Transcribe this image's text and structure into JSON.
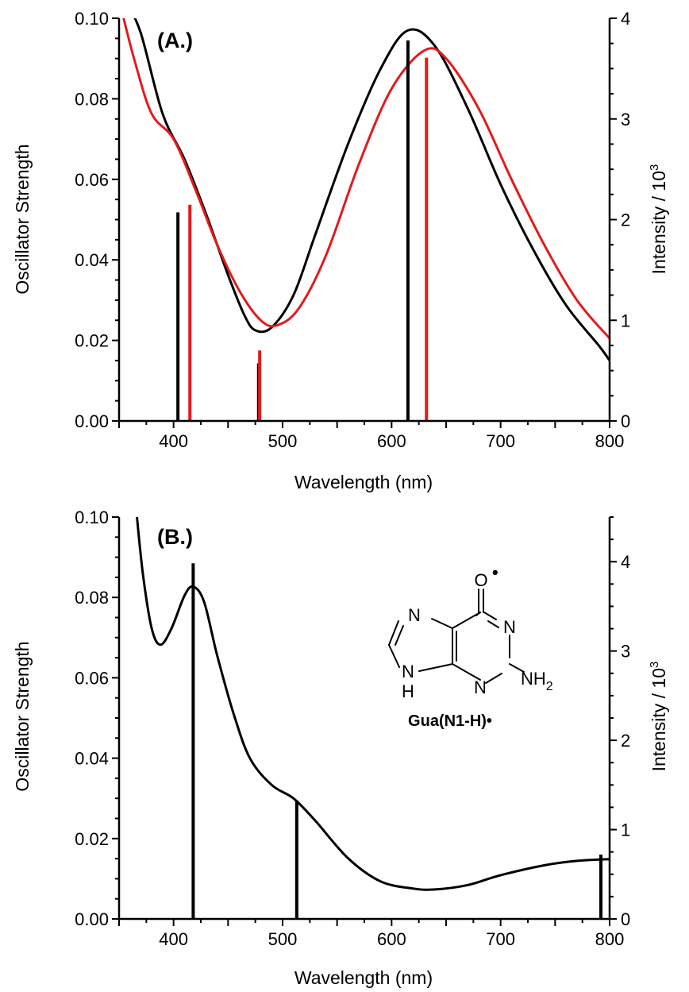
{
  "chart_data": [
    {
      "panel_label": "(A.)",
      "type": "line",
      "xlabel": "Wavelength  (nm)",
      "ylabel_left": "Oscillator Strength",
      "ylabel_right_main": "Intensity / 10",
      "ylabel_right_sup": "3",
      "xlim": [
        350,
        800
      ],
      "ylim_left": [
        0,
        0.1
      ],
      "ylim_right": [
        0,
        4
      ],
      "x_ticks": [
        400,
        500,
        600,
        700,
        800
      ],
      "y_left_ticks": [
        "0.00",
        "0.02",
        "0.04",
        "0.06",
        "0.08",
        "0.10"
      ],
      "y_right_ticks": [
        "0",
        "1",
        "2",
        "3",
        "4"
      ],
      "grid": false,
      "series": [
        {
          "color": "#000000",
          "curve": [
            [
              357,
              4.15
            ],
            [
              370,
              3.85
            ],
            [
              390,
              3.05
            ],
            [
              410,
              2.6
            ],
            [
              430,
              2.05
            ],
            [
              450,
              1.45
            ],
            [
              465,
              1.05
            ],
            [
              475,
              0.9
            ],
            [
              490,
              0.93
            ],
            [
              510,
              1.25
            ],
            [
              530,
              1.85
            ],
            [
              560,
              2.75
            ],
            [
              590,
              3.5
            ],
            [
              615,
              3.88
            ],
            [
              640,
              3.72
            ],
            [
              670,
              3.1
            ],
            [
              700,
              2.35
            ],
            [
              730,
              1.7
            ],
            [
              760,
              1.15
            ],
            [
              790,
              0.75
            ],
            [
              800,
              0.6
            ]
          ],
          "sticks": [
            [
              404,
              0.0518
            ],
            [
              478,
              0.0143
            ],
            [
              615,
              0.0945
            ]
          ]
        },
        {
          "color": "#e31a1c",
          "curve": [
            [
              353,
              4.05
            ],
            [
              365,
              3.55
            ],
            [
              380,
              3.05
            ],
            [
              400,
              2.8
            ],
            [
              420,
              2.3
            ],
            [
              440,
              1.75
            ],
            [
              460,
              1.3
            ],
            [
              480,
              1.0
            ],
            [
              495,
              0.95
            ],
            [
              515,
              1.12
            ],
            [
              540,
              1.65
            ],
            [
              570,
              2.55
            ],
            [
              600,
              3.3
            ],
            [
              630,
              3.68
            ],
            [
              650,
              3.6
            ],
            [
              680,
              3.1
            ],
            [
              710,
              2.4
            ],
            [
              740,
              1.75
            ],
            [
              770,
              1.2
            ],
            [
              800,
              0.82
            ]
          ],
          "sticks": [
            [
              415,
              0.0537
            ],
            [
              479,
              0.0175
            ],
            [
              632,
              0.0902
            ]
          ]
        }
      ]
    },
    {
      "panel_label": "(B.)",
      "type": "line",
      "xlabel": "Wavelength  (nm)",
      "ylabel_left": "Oscillator Strength",
      "ylabel_right_main": "Intensity / 10",
      "ylabel_right_sup": "3",
      "xlim": [
        350,
        800
      ],
      "ylim_left": [
        0,
        0.1
      ],
      "ylim_right": [
        0,
        4.5
      ],
      "x_ticks": [
        400,
        500,
        600,
        700,
        800
      ],
      "y_left_ticks": [
        "0.00",
        "0.02",
        "0.04",
        "0.06",
        "0.08",
        "0.10"
      ],
      "y_right_ticks": [
        "0",
        "1",
        "2",
        "3",
        "4"
      ],
      "grid": false,
      "series": [
        {
          "color": "#000000",
          "curve": [
            [
              366,
              4.55
            ],
            [
              372,
              3.85
            ],
            [
              380,
              3.25
            ],
            [
              388,
              3.07
            ],
            [
              398,
              3.25
            ],
            [
              410,
              3.62
            ],
            [
              418,
              3.72
            ],
            [
              428,
              3.55
            ],
            [
              440,
              2.95
            ],
            [
              455,
              2.3
            ],
            [
              470,
              1.8
            ],
            [
              490,
              1.5
            ],
            [
              510,
              1.35
            ],
            [
              530,
              1.1
            ],
            [
              560,
              0.68
            ],
            [
              590,
              0.42
            ],
            [
              620,
              0.34
            ],
            [
              640,
              0.33
            ],
            [
              670,
              0.38
            ],
            [
              700,
              0.49
            ],
            [
              740,
              0.6
            ],
            [
              770,
              0.65
            ],
            [
              800,
              0.67
            ]
          ],
          "sticks": [
            [
              418,
              0.0885
            ],
            [
              513,
              0.0295
            ],
            [
              792,
              0.016
            ]
          ]
        }
      ]
    }
  ],
  "molecule": {
    "atom_n": "N",
    "atom_h": "H",
    "atom_o": "O",
    "radical_dot": "•",
    "nh2_main": "NH",
    "nh2_sub": "2",
    "name": "Gua(N1-H)•"
  }
}
